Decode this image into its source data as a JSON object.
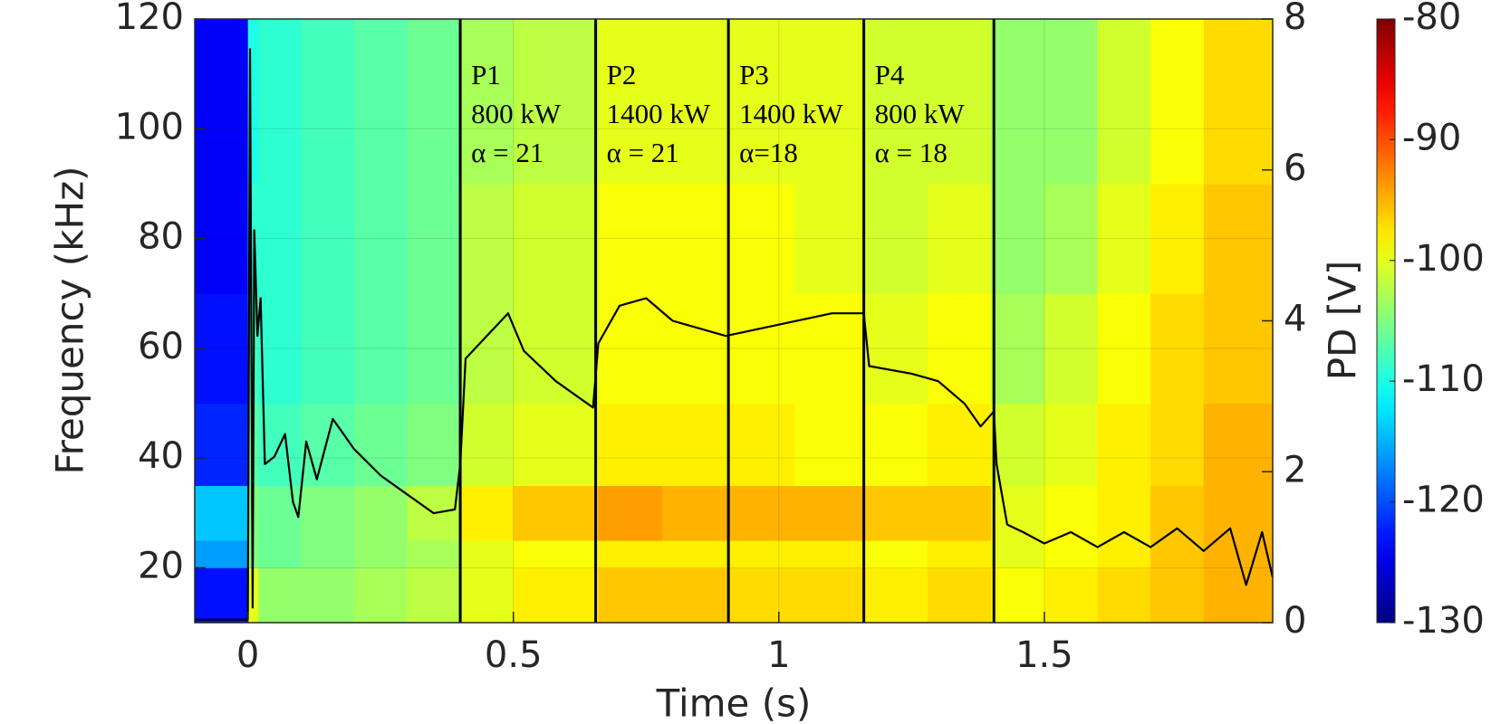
{
  "chart_data": {
    "type": "spectrogram",
    "xlabel": "Time (s)",
    "ylabel": "Frequency (kHz)",
    "y2label": "PD [V]",
    "xlim": [
      -0.1,
      1.93
    ],
    "ylim": [
      10,
      120
    ],
    "y2lim": [
      0,
      8
    ],
    "xticks": [
      0,
      0.5,
      1,
      1.5
    ],
    "yticks": [
      20,
      40,
      60,
      80,
      100,
      120
    ],
    "y2ticks": [
      0,
      2,
      4,
      6,
      8
    ],
    "grid": true,
    "heatmap": {
      "colormap": "jet",
      "clim": [
        -130,
        -80
      ],
      "cticks": [
        -130,
        -120,
        -110,
        -100,
        -90,
        -80
      ],
      "xbins": [
        -0.1,
        0,
        0.02,
        0.1,
        0.2,
        0.3,
        0.4,
        0.5,
        0.66,
        0.78,
        0.9,
        1.03,
        1.16,
        1.28,
        1.4,
        1.5,
        1.6,
        1.7,
        1.8,
        1.93
      ],
      "ybins": [
        10,
        20,
        25,
        35,
        50,
        70,
        90,
        120
      ],
      "z": [
        [
          -123,
          -116,
          -114,
          -122,
          -123,
          -124,
          -124
        ],
        [
          -100,
          -105,
          -105,
          -107,
          -108,
          -109,
          -110
        ],
        [
          -104,
          -106,
          -106,
          -108,
          -109,
          -109,
          -109
        ],
        [
          -104,
          -105,
          -105,
          -107,
          -108,
          -108,
          -108
        ],
        [
          -103,
          -104,
          -104,
          -106,
          -107,
          -107,
          -107
        ],
        [
          -102,
          -103,
          -102,
          -105,
          -106,
          -106,
          -106
        ],
        [
          -100,
          -100,
          -98,
          -101,
          -102,
          -102,
          -103
        ],
        [
          -98,
          -99,
          -96,
          -100,
          -101,
          -101,
          -102
        ],
        [
          -96,
          -98,
          -94,
          -98,
          -99,
          -99,
          -100
        ],
        [
          -96,
          -98,
          -95,
          -98,
          -99,
          -99,
          -100
        ],
        [
          -97,
          -98,
          -95,
          -98,
          -99,
          -99,
          -100
        ],
        [
          -97,
          -98,
          -95,
          -99,
          -99,
          -100,
          -100
        ],
        [
          -98,
          -99,
          -96,
          -99,
          -100,
          -101,
          -101
        ],
        [
          -97,
          -98,
          -96,
          -98,
          -99,
          -100,
          -101
        ],
        [
          -99,
          -100,
          -100,
          -101,
          -103,
          -104,
          -104
        ],
        [
          -98,
          -99,
          -99,
          -100,
          -101,
          -103,
          -104
        ],
        [
          -97,
          -98,
          -98,
          -98,
          -99,
          -100,
          -101
        ],
        [
          -96,
          -96,
          -96,
          -97,
          -97,
          -98,
          -99
        ],
        [
          -95,
          -95,
          -95,
          -95,
          -96,
          -96,
          -97
        ]
      ]
    },
    "line": {
      "axis": "y2",
      "color": "#000000",
      "x": [
        -0.1,
        0.0,
        0.004,
        0.009,
        0.012,
        0.018,
        0.024,
        0.032,
        0.05,
        0.07,
        0.085,
        0.095,
        0.11,
        0.13,
        0.16,
        0.2,
        0.25,
        0.3,
        0.35,
        0.39,
        0.4,
        0.41,
        0.45,
        0.49,
        0.52,
        0.58,
        0.65,
        0.66,
        0.7,
        0.75,
        0.8,
        0.9,
        1.0,
        1.1,
        1.16,
        1.17,
        1.25,
        1.3,
        1.35,
        1.38,
        1.405,
        1.41,
        1.43,
        1.46,
        1.5,
        1.55,
        1.6,
        1.65,
        1.7,
        1.75,
        1.8,
        1.85,
        1.88,
        1.91,
        1.93
      ],
      "values": [
        0.04,
        0.04,
        7.6,
        0.2,
        5.2,
        3.8,
        4.3,
        2.1,
        2.2,
        2.5,
        1.6,
        1.4,
        2.4,
        1.9,
        2.7,
        2.3,
        1.95,
        1.7,
        1.45,
        1.5,
        2.1,
        3.5,
        3.8,
        4.1,
        3.6,
        3.2,
        2.85,
        3.7,
        4.2,
        4.3,
        4.0,
        3.8,
        3.95,
        4.1,
        4.1,
        3.4,
        3.3,
        3.2,
        2.9,
        2.6,
        2.8,
        2.1,
        1.3,
        1.2,
        1.05,
        1.2,
        1.0,
        1.2,
        1.0,
        1.25,
        0.95,
        1.25,
        0.5,
        1.2,
        0.6
      ]
    },
    "vlines": [
      0.4,
      0.655,
      0.905,
      1.16,
      1.405
    ],
    "vline_color": "#000000",
    "annotations": [
      [
        "P1",
        "800 kW",
        "α = 21"
      ],
      [
        "P2",
        "1400 kW",
        "α = 21"
      ],
      [
        "P3",
        "1400 kW",
        "α=18"
      ],
      [
        "P4",
        "800 kW",
        "α = 18"
      ]
    ]
  }
}
